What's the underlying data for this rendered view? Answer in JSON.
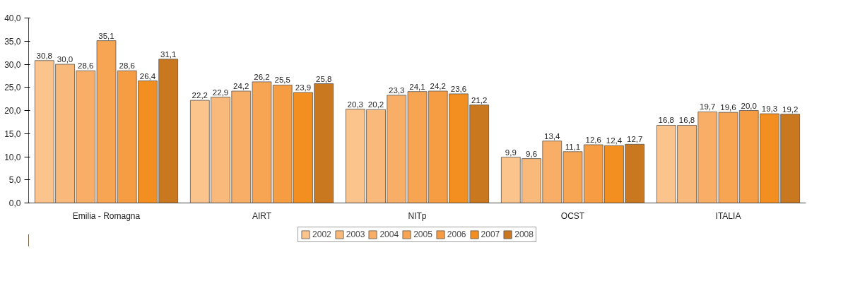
{
  "chart_data": {
    "type": "bar",
    "categories": [
      "Emilia - Romagna",
      "AIRT",
      "NITp",
      "OCST",
      "ITALIA"
    ],
    "series": [
      {
        "name": "2002",
        "color": "#fbc48c",
        "values": [
          30.8,
          22.2,
          20.3,
          9.9,
          16.8
        ],
        "value_labels": [
          "30,8",
          "22,2",
          "20,3",
          "9,9",
          "16,8"
        ]
      },
      {
        "name": "2003",
        "color": "#f9b97a",
        "values": [
          30.0,
          22.9,
          20.2,
          9.6,
          16.8
        ],
        "value_labels": [
          "30,0",
          "22,9",
          "20,2",
          "9,6",
          "16,8"
        ]
      },
      {
        "name": "2004",
        "color": "#f8ae66",
        "values": [
          28.6,
          24.2,
          23.3,
          13.4,
          19.7
        ],
        "value_labels": [
          "28,6",
          "24,2",
          "23,3",
          "13,4",
          "19,7"
        ]
      },
      {
        "name": "2005",
        "color": "#f7a552",
        "values": [
          35.1,
          26.2,
          24.1,
          11.1,
          19.6
        ],
        "value_labels": [
          "35,1",
          "26,2",
          "24,1",
          "11,1",
          "19,6"
        ]
      },
      {
        "name": "2006",
        "color": "#f69c42",
        "values": [
          28.6,
          25.5,
          24.2,
          12.6,
          20.0
        ],
        "value_labels": [
          "28,6",
          "25,5",
          "24,2",
          "12,6",
          "20,0"
        ]
      },
      {
        "name": "2007",
        "color": "#f38e20",
        "values": [
          26.4,
          23.9,
          23.6,
          12.4,
          19.3
        ],
        "value_labels": [
          "26,4",
          "23,9",
          "23,6",
          "12,4",
          "19,3"
        ]
      },
      {
        "name": "2008",
        "color": "#c9781f",
        "values": [
          31.1,
          25.8,
          21.2,
          12.7,
          19.2
        ],
        "value_labels": [
          "31,1",
          "25,8",
          "21,2",
          "12,7",
          "19,2"
        ]
      }
    ],
    "ylim": [
      0,
      40
    ],
    "yticks": [
      {
        "value": 0,
        "label": "0,0"
      },
      {
        "value": 5,
        "label": "5,0"
      },
      {
        "value": 10,
        "label": "10,0"
      },
      {
        "value": 15,
        "label": "15,0"
      },
      {
        "value": 20,
        "label": "20,0"
      },
      {
        "value": 25,
        "label": "25,0"
      },
      {
        "value": 30,
        "label": "30,0"
      },
      {
        "value": 35,
        "label": "35,0"
      },
      {
        "value": 40,
        "label": "40,0"
      }
    ],
    "grid": false,
    "legend": "bottom"
  }
}
